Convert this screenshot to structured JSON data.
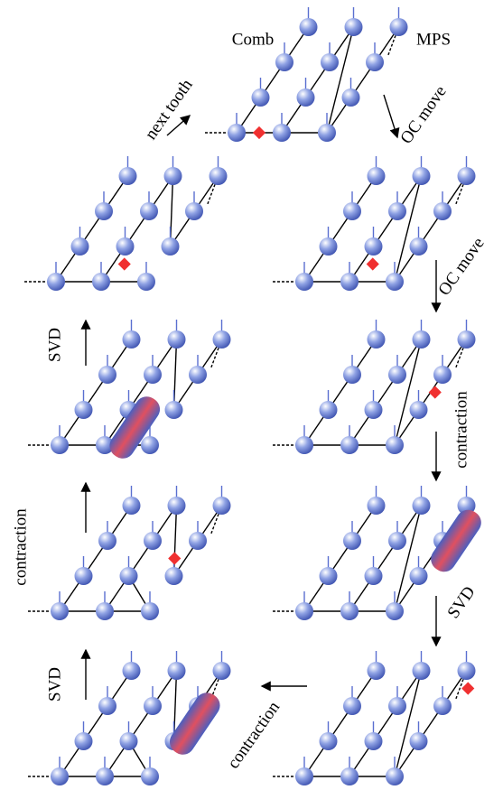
{
  "labels": {
    "comb": "Comb",
    "mps": "MPS",
    "steps": [
      "next tooth",
      "OC move",
      "OC move",
      "SVD",
      "contraction",
      "contraction",
      "SVD",
      "SVD",
      "contraction"
    ]
  }
}
